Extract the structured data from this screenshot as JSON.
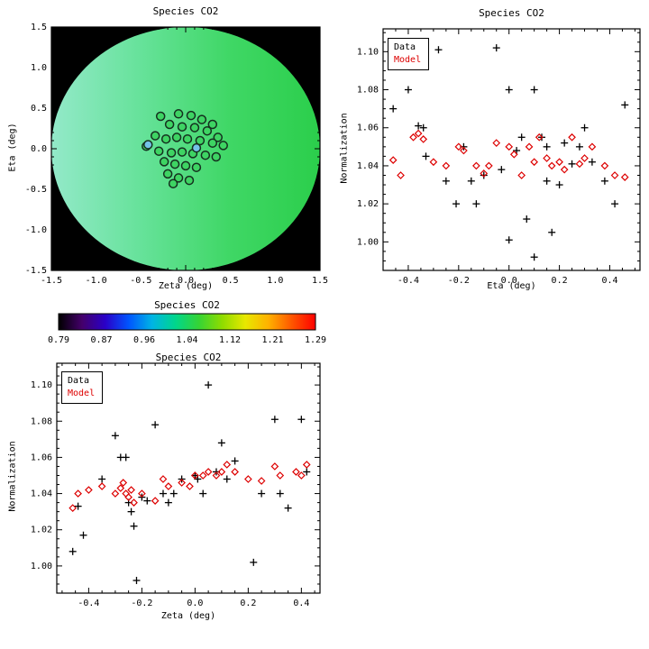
{
  "colors": {
    "data": "#000000",
    "model": "#dd0000",
    "axis": "#000000",
    "map_background": "#000000",
    "field_gradient": [
      "#93e9c9",
      "#66e29a",
      "#3fd765",
      "#2bce4b"
    ],
    "marker_fill": "#3ed463",
    "marker_fill_highlight": "#74c2e8",
    "marker_stroke": "#15301f",
    "colorbar_gradient": [
      "#000000",
      "#44006a",
      "#2a00c8",
      "#0055ff",
      "#00b4e4",
      "#00d68c",
      "#35d435",
      "#8fdc00",
      "#e8e800",
      "#ffb000",
      "#ff5500",
      "#ff0000"
    ]
  },
  "chart_data": [
    {
      "id": "map",
      "type": "scatter",
      "title": "Species CO2",
      "xlabel": "Zeta (deg)",
      "ylabel": "Eta (deg)",
      "xlim": [
        -1.5,
        1.5
      ],
      "ylim": [
        -1.5,
        1.5
      ],
      "xticks": [
        -1.5,
        -1.0,
        -0.5,
        0.0,
        0.5,
        1.0,
        1.5
      ],
      "yticks": [
        -1.5,
        -1.0,
        -0.5,
        0.0,
        0.5,
        1.0,
        1.5
      ],
      "field": {
        "center": [
          0.0,
          0.0
        ],
        "radius": 1.5
      },
      "points": [
        [
          -0.28,
          0.4
        ],
        [
          -0.08,
          0.43
        ],
        [
          0.06,
          0.41
        ],
        [
          0.18,
          0.36
        ],
        [
          0.3,
          0.3
        ],
        [
          -0.18,
          0.3
        ],
        [
          -0.04,
          0.27
        ],
        [
          0.1,
          0.26
        ],
        [
          0.24,
          0.22
        ],
        [
          0.36,
          0.14
        ],
        [
          -0.34,
          0.16
        ],
        [
          -0.22,
          0.12
        ],
        [
          -0.1,
          0.14
        ],
        [
          0.02,
          0.12
        ],
        [
          0.16,
          0.1
        ],
        [
          0.3,
          0.07
        ],
        [
          0.42,
          0.04
        ],
        [
          -0.44,
          0.03
        ],
        [
          -0.3,
          -0.03
        ],
        [
          -0.16,
          -0.05
        ],
        [
          -0.04,
          -0.04
        ],
        [
          0.08,
          -0.06
        ],
        [
          0.22,
          -0.08
        ],
        [
          0.34,
          -0.1
        ],
        [
          -0.24,
          -0.16
        ],
        [
          -0.12,
          -0.19
        ],
        [
          0.0,
          -0.21
        ],
        [
          0.12,
          -0.23
        ],
        [
          -0.2,
          -0.31
        ],
        [
          -0.08,
          -0.36
        ],
        [
          0.04,
          -0.39
        ],
        [
          -0.14,
          -0.43
        ]
      ],
      "highlight_points": [
        [
          -0.42,
          0.05
        ],
        [
          0.12,
          0.01
        ]
      ]
    },
    {
      "id": "eta",
      "type": "scatter",
      "title": "Species CO2",
      "xlabel": "Eta (deg)",
      "ylabel": "Normalization",
      "xlim": [
        -0.5,
        0.52
      ],
      "ylim": [
        0.985,
        1.112
      ],
      "xticks": [
        -0.4,
        -0.2,
        0.0,
        0.2,
        0.4
      ],
      "yticks": [
        1.0,
        1.02,
        1.04,
        1.06,
        1.08,
        1.1
      ],
      "legend": {
        "data_label": "Data",
        "model_label": "Model",
        "position": "top-left"
      },
      "series": [
        {
          "name": "Data",
          "marker": "plus",
          "color": "#000000",
          "points": [
            [
              -0.46,
              1.07
            ],
            [
              -0.4,
              1.08
            ],
            [
              -0.36,
              1.061
            ],
            [
              -0.34,
              1.06
            ],
            [
              -0.33,
              1.045
            ],
            [
              -0.28,
              1.101
            ],
            [
              -0.25,
              1.032
            ],
            [
              -0.21,
              1.02
            ],
            [
              -0.18,
              1.05
            ],
            [
              -0.15,
              1.032
            ],
            [
              -0.13,
              1.02
            ],
            [
              -0.1,
              1.035
            ],
            [
              -0.05,
              1.102
            ],
            [
              -0.03,
              1.038
            ],
            [
              0.0,
              1.08
            ],
            [
              0.0,
              1.001
            ],
            [
              0.03,
              1.048
            ],
            [
              0.05,
              1.055
            ],
            [
              0.07,
              1.012
            ],
            [
              0.1,
              0.992
            ],
            [
              0.1,
              1.08
            ],
            [
              0.13,
              1.055
            ],
            [
              0.15,
              1.05
            ],
            [
              0.15,
              1.032
            ],
            [
              0.17,
              1.005
            ],
            [
              0.2,
              1.03
            ],
            [
              0.22,
              1.052
            ],
            [
              0.25,
              1.041
            ],
            [
              0.28,
              1.05
            ],
            [
              0.3,
              1.06
            ],
            [
              0.33,
              1.042
            ],
            [
              0.38,
              1.032
            ],
            [
              0.42,
              1.02
            ],
            [
              0.46,
              1.072
            ]
          ]
        },
        {
          "name": "Model",
          "marker": "diamond",
          "color": "#dd0000",
          "points": [
            [
              -0.46,
              1.043
            ],
            [
              -0.43,
              1.035
            ],
            [
              -0.38,
              1.055
            ],
            [
              -0.36,
              1.057
            ],
            [
              -0.34,
              1.054
            ],
            [
              -0.3,
              1.042
            ],
            [
              -0.25,
              1.04
            ],
            [
              -0.2,
              1.05
            ],
            [
              -0.18,
              1.048
            ],
            [
              -0.13,
              1.04
            ],
            [
              -0.1,
              1.036
            ],
            [
              -0.08,
              1.04
            ],
            [
              -0.05,
              1.052
            ],
            [
              0.0,
              1.05
            ],
            [
              0.02,
              1.046
            ],
            [
              0.05,
              1.035
            ],
            [
              0.08,
              1.05
            ],
            [
              0.1,
              1.042
            ],
            [
              0.12,
              1.055
            ],
            [
              0.15,
              1.044
            ],
            [
              0.17,
              1.04
            ],
            [
              0.2,
              1.042
            ],
            [
              0.22,
              1.038
            ],
            [
              0.25,
              1.055
            ],
            [
              0.28,
              1.041
            ],
            [
              0.3,
              1.044
            ],
            [
              0.33,
              1.05
            ],
            [
              0.38,
              1.04
            ],
            [
              0.42,
              1.035
            ],
            [
              0.46,
              1.034
            ]
          ]
        }
      ]
    },
    {
      "id": "colorbar",
      "type": "colorbar",
      "title": "Species CO2",
      "ticks": [
        0.79,
        0.87,
        0.96,
        1.04,
        1.12,
        1.21,
        1.29
      ]
    },
    {
      "id": "zeta",
      "type": "scatter",
      "title": "Species CO2",
      "xlabel": "Zeta (deg)",
      "ylabel": "Normalization",
      "xlim": [
        -0.52,
        0.47
      ],
      "ylim": [
        0.985,
        1.112
      ],
      "xticks": [
        -0.4,
        -0.2,
        0.0,
        0.2,
        0.4
      ],
      "yticks": [
        1.0,
        1.02,
        1.04,
        1.06,
        1.08,
        1.1
      ],
      "legend": {
        "data_label": "Data",
        "model_label": "Model",
        "position": "top-left"
      },
      "series": [
        {
          "name": "Data",
          "marker": "plus",
          "color": "#000000",
          "points": [
            [
              -0.46,
              1.008
            ],
            [
              -0.44,
              1.033
            ],
            [
              -0.42,
              1.017
            ],
            [
              -0.35,
              1.048
            ],
            [
              -0.3,
              1.072
            ],
            [
              -0.28,
              1.06
            ],
            [
              -0.26,
              1.06
            ],
            [
              -0.25,
              1.035
            ],
            [
              -0.24,
              1.03
            ],
            [
              -0.23,
              1.022
            ],
            [
              -0.22,
              0.992
            ],
            [
              -0.2,
              1.038
            ],
            [
              -0.18,
              1.036
            ],
            [
              -0.15,
              1.078
            ],
            [
              -0.12,
              1.04
            ],
            [
              -0.1,
              1.035
            ],
            [
              -0.08,
              1.04
            ],
            [
              -0.05,
              1.048
            ],
            [
              0.0,
              1.05
            ],
            [
              0.01,
              1.048
            ],
            [
              0.03,
              1.04
            ],
            [
              0.05,
              1.1
            ],
            [
              0.08,
              1.052
            ],
            [
              0.1,
              1.068
            ],
            [
              0.12,
              1.048
            ],
            [
              0.15,
              1.058
            ],
            [
              0.22,
              1.002
            ],
            [
              0.25,
              1.04
            ],
            [
              0.3,
              1.081
            ],
            [
              0.32,
              1.04
            ],
            [
              0.35,
              1.032
            ],
            [
              0.4,
              1.081
            ],
            [
              0.42,
              1.052
            ]
          ]
        },
        {
          "name": "Model",
          "marker": "diamond",
          "color": "#dd0000",
          "points": [
            [
              -0.46,
              1.032
            ],
            [
              -0.44,
              1.04
            ],
            [
              -0.4,
              1.042
            ],
            [
              -0.35,
              1.044
            ],
            [
              -0.3,
              1.04
            ],
            [
              -0.28,
              1.043
            ],
            [
              -0.27,
              1.046
            ],
            [
              -0.26,
              1.04
            ],
            [
              -0.25,
              1.038
            ],
            [
              -0.24,
              1.042
            ],
            [
              -0.23,
              1.035
            ],
            [
              -0.2,
              1.04
            ],
            [
              -0.15,
              1.036
            ],
            [
              -0.12,
              1.048
            ],
            [
              -0.1,
              1.044
            ],
            [
              -0.05,
              1.046
            ],
            [
              -0.02,
              1.044
            ],
            [
              0.0,
              1.05
            ],
            [
              0.03,
              1.05
            ],
            [
              0.05,
              1.052
            ],
            [
              0.08,
              1.05
            ],
            [
              0.1,
              1.052
            ],
            [
              0.12,
              1.056
            ],
            [
              0.15,
              1.052
            ],
            [
              0.2,
              1.048
            ],
            [
              0.25,
              1.047
            ],
            [
              0.3,
              1.055
            ],
            [
              0.32,
              1.05
            ],
            [
              0.38,
              1.052
            ],
            [
              0.4,
              1.05
            ],
            [
              0.42,
              1.056
            ]
          ]
        }
      ]
    }
  ]
}
